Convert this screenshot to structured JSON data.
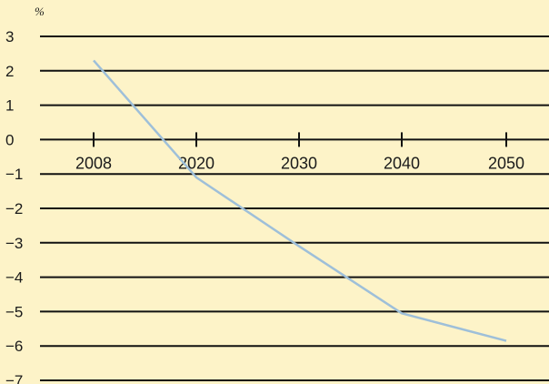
{
  "chart_data": {
    "type": "line",
    "title": "",
    "xlabel": "",
    "ylabel": "%",
    "ylim": [
      -7,
      3
    ],
    "yticks": [
      "3",
      "2",
      "1",
      "0",
      "−1",
      "−2",
      "−3",
      "−4",
      "−5",
      "−6",
      "−7"
    ],
    "xticks": [
      "2008",
      "2020",
      "2030",
      "2040",
      "2050"
    ],
    "grid": "horizontal",
    "colors": {
      "background": "#fdf3c8",
      "line": "#9ebfd9",
      "grid": "#111111"
    },
    "series": [
      {
        "x": [
          2008,
          2020,
          2030,
          2040,
          2050
        ],
        "values": [
          2.3,
          -1.1,
          -3.1,
          -5.05,
          -5.85
        ]
      }
    ]
  }
}
